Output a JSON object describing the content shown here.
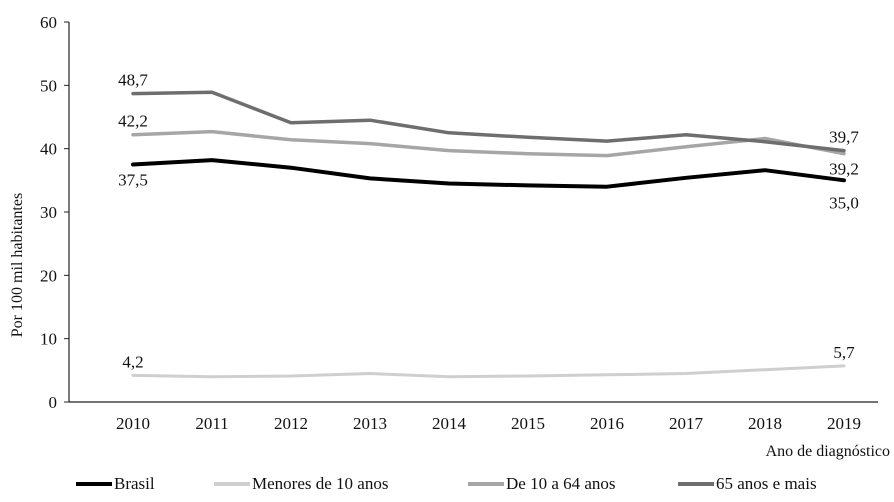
{
  "chart_data": {
    "type": "line",
    "title": "",
    "xlabel": "Ano de diagnóstico",
    "ylabel": "Por 100 mil habitantes",
    "ylim": [
      0,
      60
    ],
    "yticks": [
      "0",
      "10",
      "20",
      "30",
      "40",
      "50",
      "60"
    ],
    "categories": [
      "2010",
      "2011",
      "2012",
      "2013",
      "2014",
      "2015",
      "2016",
      "2017",
      "2018",
      "2019"
    ],
    "grid": false,
    "legend_position": "bottom",
    "series": [
      {
        "name": "Brasil",
        "color": "#000000",
        "width": 4,
        "values": [
          37.5,
          38.2,
          37.0,
          35.3,
          34.5,
          34.2,
          34.0,
          35.4,
          36.6,
          35.0
        ]
      },
      {
        "name": "Menores de 10 anos",
        "color": "#cfcfcf",
        "width": 3,
        "values": [
          4.2,
          4.0,
          4.1,
          4.5,
          4.0,
          4.1,
          4.3,
          4.5,
          5.1,
          5.7
        ]
      },
      {
        "name": "De 10 a 64 anos",
        "color": "#a6a6a6",
        "width": 3.5,
        "values": [
          42.2,
          42.7,
          41.4,
          40.8,
          39.7,
          39.2,
          38.9,
          40.3,
          41.6,
          39.2
        ]
      },
      {
        "name": "65 anos e mais",
        "color": "#6e6e6e",
        "width": 3.5,
        "values": [
          48.7,
          48.9,
          44.1,
          44.5,
          42.5,
          41.8,
          41.2,
          42.2,
          41.1,
          39.7
        ]
      }
    ],
    "annotations": [
      {
        "text": "48,7",
        "series": 3,
        "index": 0,
        "pos": "above"
      },
      {
        "text": "42,2",
        "series": 2,
        "index": 0,
        "pos": "above"
      },
      {
        "text": "37,5",
        "series": 0,
        "index": 0,
        "pos": "below"
      },
      {
        "text": "4,2",
        "series": 1,
        "index": 0,
        "pos": "above"
      },
      {
        "text": "39,7",
        "series": 3,
        "index": 9,
        "pos": "above"
      },
      {
        "text": "39,2",
        "series": 2,
        "index": 9,
        "pos": "below"
      },
      {
        "text": "35,0",
        "series": 0,
        "index": 9,
        "pos": "below2"
      },
      {
        "text": "5,7",
        "series": 1,
        "index": 9,
        "pos": "above"
      }
    ]
  }
}
